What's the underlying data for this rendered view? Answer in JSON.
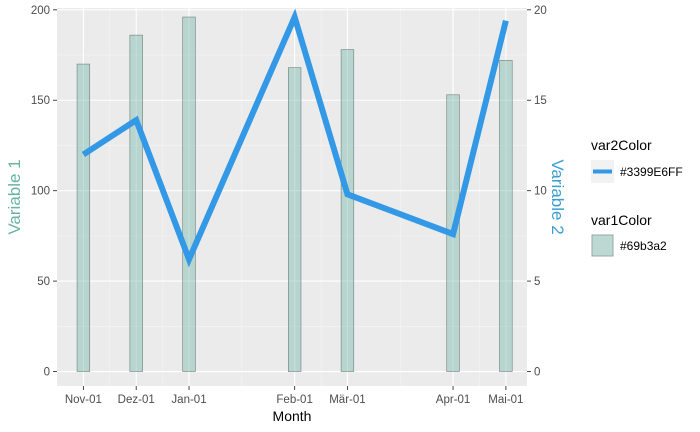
{
  "chart_data": {
    "type": "bar",
    "categories": [
      "Nov-01",
      "Dez-01",
      "Jan-01",
      "Feb-01",
      "Mär-01",
      "Apr-01",
      "Mai-01"
    ],
    "x_positions": [
      0,
      1,
      2,
      4,
      5,
      7,
      8
    ],
    "xlim": [
      -0.5,
      8.4
    ],
    "xlabel": "Month",
    "grid": true,
    "legend_position": "right",
    "series": [
      {
        "name": "var1Color",
        "kind": "bar",
        "axis": "left",
        "color": "#69b3a2",
        "values": [
          170,
          186,
          196,
          168,
          178,
          153,
          172
        ]
      },
      {
        "name": "var2Color",
        "kind": "line",
        "axis": "right",
        "color": "#3399E6",
        "values": [
          12.0,
          13.9,
          6.2,
          19.6,
          9.8,
          7.6,
          19.4
        ]
      }
    ],
    "y_left": {
      "label": "Variable 1",
      "ylim": [
        -8,
        201
      ],
      "ticks": [
        0,
        50,
        100,
        150,
        200
      ],
      "color": "#69b3a2"
    },
    "y_right": {
      "label": "Variable 2",
      "ylim": [
        -0.8,
        20.1
      ],
      "ticks": [
        0,
        5,
        10,
        15,
        20
      ],
      "color": "#3a9fcf"
    },
    "legend": [
      {
        "title": "var2Color",
        "label": "#3399E6FF",
        "kind": "line",
        "color": "#3399E6"
      },
      {
        "title": "var1Color",
        "label": "#69b3a2",
        "kind": "bar",
        "color": "#69b3a2"
      }
    ]
  }
}
